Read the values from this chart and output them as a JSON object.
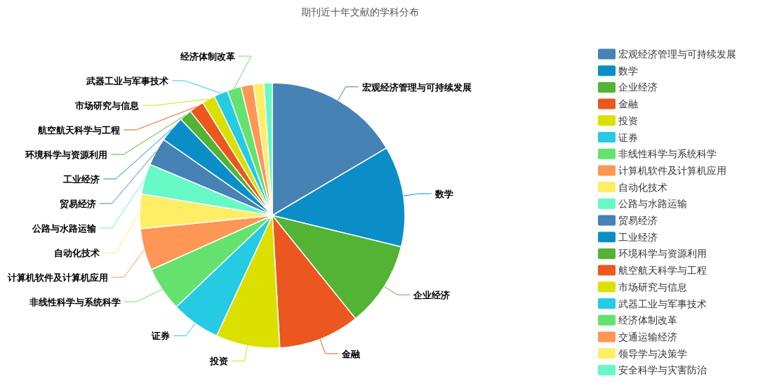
{
  "chart_data": {
    "type": "pie",
    "title": "期刊近十年文献的学科分布",
    "categories": [
      "宏观经济管理与可持续发展",
      "数学",
      "企业经济",
      "金融",
      "投资",
      "证券",
      "非线性科学与系统科学",
      "计算机软件及计算机应用",
      "自动化技术",
      "公路与水路运输",
      "贸易经济",
      "工业经济",
      "环境科学与资源利用",
      "航空航天科学与工程",
      "市场研究与信息",
      "武器工业与军事技术",
      "经济体制改革",
      "交通运输经济",
      "领导学与决策学",
      "安全科学与灾害防治"
    ],
    "values": [
      16.5,
      12.3,
      10.4,
      9.9,
      7.8,
      6.0,
      5.4,
      5.1,
      4.2,
      3.7,
      3.4,
      3.2,
      1.5,
      1.8,
      1.6,
      1.7,
      1.7,
      1.5,
      1.3,
      1.0
    ],
    "colors": [
      "#4682b4",
      "#0b8ec8",
      "#52b334",
      "#eb571e",
      "#dbe000",
      "#25cae3",
      "#65e26d",
      "#fe9656",
      "#fdee66",
      "#66f8c5",
      "#4682b4",
      "#0b8ec8",
      "#52b334",
      "#eb571e",
      "#dbe000",
      "#25cae3",
      "#65e26d",
      "#fe9656",
      "#fdee66",
      "#66f8c5"
    ],
    "legend": "right"
  }
}
